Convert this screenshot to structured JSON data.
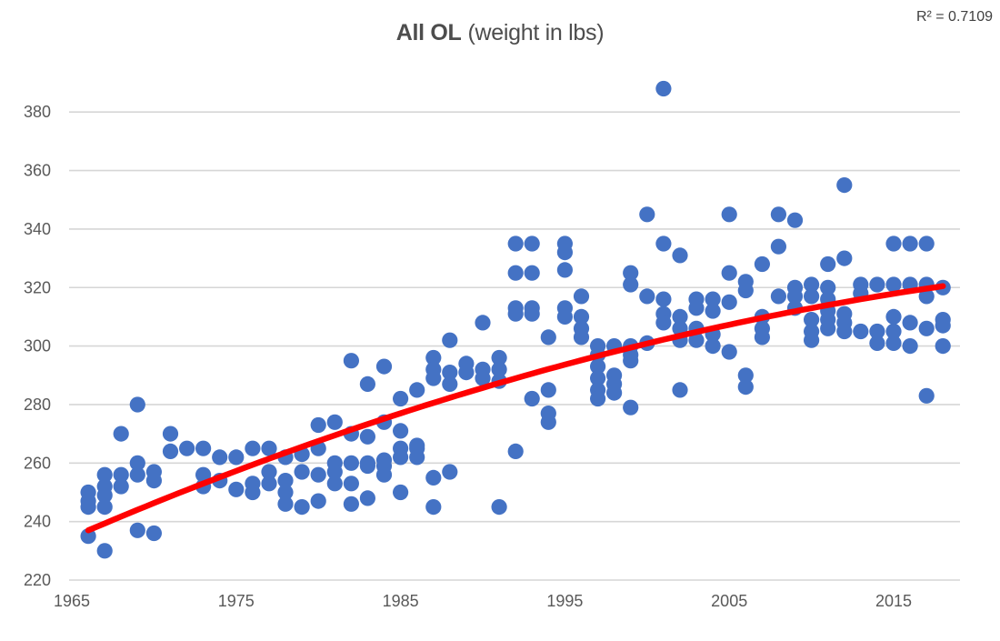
{
  "header": {
    "title_bold": "All OL",
    "title_rest": "(weight in lbs)",
    "r_squared_label": "R² = 0.7109"
  },
  "chart_data": {
    "type": "scatter",
    "title": "All OL (weight in lbs)",
    "xlabel": "",
    "ylabel": "",
    "x_ticks": [
      1965,
      1975,
      1985,
      1995,
      2005,
      2015
    ],
    "y_ticks": [
      220,
      240,
      260,
      280,
      300,
      320,
      340,
      360,
      380
    ],
    "xlim": [
      1964,
      2021
    ],
    "ylim": [
      218,
      392
    ],
    "grid": "horizontal-only",
    "legend": "none",
    "colors": {
      "marker": "#4472c4",
      "trendline": "#ff0000",
      "gridline": "#d6d6d6",
      "tick_text": "#595959",
      "title_text": "#4d4d4d"
    },
    "trendline": {
      "type": "polynomial",
      "r_squared": 0.7109,
      "origin_year": 1966,
      "a": 237,
      "b": 2.393,
      "c": -0.01515,
      "domain": [
        1966,
        2018.3
      ]
    },
    "points_by_year": {
      "1966": [
        250,
        247,
        245,
        235
      ],
      "1967": [
        256,
        252,
        249,
        245,
        230
      ],
      "1968": [
        270,
        256,
        252
      ],
      "1969": [
        280,
        260,
        256,
        237
      ],
      "1970": [
        257,
        254,
        236
      ],
      "1971": [
        270,
        264
      ],
      "1972": [
        265
      ],
      "1973": [
        265,
        256,
        252
      ],
      "1974": [
        262,
        254
      ],
      "1975": [
        262,
        251
      ],
      "1976": [
        265,
        253,
        250
      ],
      "1977": [
        265,
        257,
        253
      ],
      "1978": [
        262,
        254,
        250,
        246
      ],
      "1979": [
        263,
        257,
        245
      ],
      "1980": [
        273,
        265,
        256,
        247
      ],
      "1981": [
        274,
        260,
        257,
        253
      ],
      "1982": [
        295,
        270,
        260,
        253,
        246
      ],
      "1983": [
        287,
        269,
        260,
        259,
        248
      ],
      "1984": [
        293,
        274,
        261,
        259,
        256
      ],
      "1985": [
        282,
        271,
        265,
        262,
        250
      ],
      "1986": [
        285,
        266,
        265,
        262
      ],
      "1987": [
        296,
        292,
        289,
        255,
        245
      ],
      "1988": [
        302,
        291,
        287,
        257
      ],
      "1989": [
        294,
        291
      ],
      "1990": [
        308,
        292,
        289
      ],
      "1991": [
        296,
        292,
        288,
        245
      ],
      "1992": [
        335,
        325,
        313,
        311,
        264
      ],
      "1993": [
        335,
        325,
        313,
        311,
        282
      ],
      "1994": [
        303,
        285,
        277,
        274
      ],
      "1995": [
        335,
        332,
        326,
        313,
        310
      ],
      "1996": [
        317,
        310,
        306,
        303
      ],
      "1997": [
        300,
        297,
        293,
        289,
        285,
        282
      ],
      "1998": [
        300,
        290,
        287,
        284
      ],
      "1999": [
        325,
        321,
        300,
        297,
        295,
        279
      ],
      "2000": [
        345,
        317,
        301
      ],
      "2001": [
        388,
        335,
        316,
        311,
        308
      ],
      "2002": [
        331,
        310,
        306,
        302,
        285
      ],
      "2003": [
        316,
        313,
        306,
        302
      ],
      "2004": [
        316,
        312,
        304,
        300
      ],
      "2005": [
        345,
        325,
        315,
        298
      ],
      "2006": [
        322,
        319,
        290,
        286
      ],
      "2007": [
        328,
        310,
        306,
        303
      ],
      "2008": [
        345,
        334,
        317
      ],
      "2009": [
        343,
        320,
        317,
        313
      ],
      "2010": [
        321,
        317,
        309,
        305,
        302
      ],
      "2011": [
        328,
        320,
        316,
        312,
        309,
        306
      ],
      "2012": [
        355,
        330,
        311,
        308,
        305
      ],
      "2013": [
        321,
        318,
        305
      ],
      "2014": [
        321,
        305,
        301
      ],
      "2015": [
        335,
        321,
        310,
        305,
        301
      ],
      "2016": [
        335,
        321,
        308,
        300
      ],
      "2017": [
        335,
        321,
        317,
        306,
        283
      ],
      "2018": [
        320,
        309,
        307,
        300
      ]
    }
  }
}
